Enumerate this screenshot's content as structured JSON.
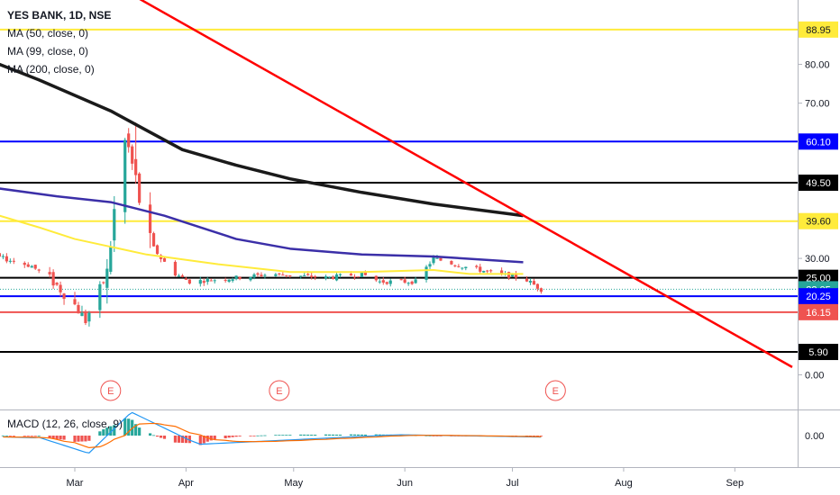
{
  "chart_data": {
    "type": "candlestick",
    "symbol": "YES BANK, 1D, NSE",
    "indicators": {
      "ma50": "MA (50, close, 0)",
      "ma99": "MA (99, close, 0)",
      "ma200": "MA (200, close, 0)",
      "macd": "MACD (12, 26, close, 9)"
    },
    "x_tick_labels": [
      "Mar",
      "Apr",
      "May",
      "Jun",
      "Jul",
      "Aug",
      "Sep"
    ],
    "y_tick_labels": [
      "80.00",
      "70.00",
      "30.00",
      "0.00"
    ],
    "macd_tick_label": "0.00",
    "price_markers": [
      {
        "value": 88.95,
        "label": "88.95",
        "kind": "level",
        "color": "#ffeb3b"
      },
      {
        "value": 60.1,
        "label": "60.10",
        "kind": "level",
        "color": "#0000ff"
      },
      {
        "value": 49.5,
        "label": "49.50",
        "kind": "level",
        "color": "#000000"
      },
      {
        "value": 39.6,
        "label": "39.60",
        "kind": "level",
        "color": "#ffeb3b"
      },
      {
        "value": 25.0,
        "label": "25.00",
        "kind": "level",
        "color": "#000000"
      },
      {
        "value": 22.05,
        "label": "22.05",
        "kind": "last",
        "color": "#26a69a"
      },
      {
        "value": 20.25,
        "label": "20.25",
        "kind": "level",
        "color": "#0000ff"
      },
      {
        "value": 16.15,
        "label": "16.15",
        "kind": "level",
        "color": "#ef5350"
      },
      {
        "value": 5.9,
        "label": "5.90",
        "kind": "level",
        "color": "#000000"
      }
    ],
    "earnings_marker": "E",
    "colors": {
      "up": "#26a69a",
      "down": "#ef5350",
      "ma50": "#ffeb3b",
      "ma99": "#3b2fa8",
      "ma200": "#1a1a1a",
      "trendline": "#ff0000"
    }
  }
}
